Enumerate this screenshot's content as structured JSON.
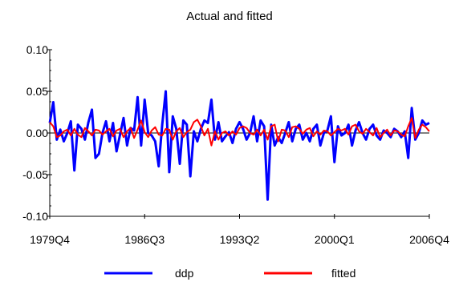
{
  "chart_data": {
    "type": "line",
    "title": "Actual and fitted",
    "xlabel": "",
    "ylabel": "",
    "ylim": [
      -0.1,
      0.1
    ],
    "yticks": [
      -0.1,
      -0.05,
      0.0,
      0.05,
      0.1
    ],
    "ytick_labels": [
      "-0.10",
      "-0.05",
      "0.00",
      "0.05",
      "0.10"
    ],
    "x_start": "1979Q4",
    "x_end": "2006Q4",
    "xtick_labels": [
      "1979Q4",
      "1986Q3",
      "1993Q2",
      "2000Q1",
      "2006Q4"
    ],
    "xtick_index": [
      0,
      27,
      54,
      81,
      108
    ],
    "legend_position": "bottom",
    "series": [
      {
        "name": "ddp",
        "color": "#0000ff",
        "values": [
          0.012,
          0.037,
          -0.008,
          0.004,
          -0.01,
          0.0,
          0.014,
          -0.045,
          0.01,
          0.005,
          -0.008,
          0.013,
          0.028,
          -0.03,
          -0.025,
          0.0,
          0.014,
          -0.01,
          0.012,
          -0.022,
          -0.002,
          0.018,
          -0.015,
          0.006,
          0.003,
          0.043,
          -0.015,
          0.04,
          0.0,
          -0.003,
          -0.01,
          -0.04,
          0.01,
          0.05,
          -0.047,
          0.02,
          0.005,
          -0.037,
          0.015,
          0.01,
          -0.052,
          0.002,
          -0.01,
          0.005,
          0.015,
          0.012,
          0.04,
          -0.008,
          0.013,
          -0.01,
          -0.004,
          0.001,
          -0.012,
          0.005,
          0.013,
          0.005,
          -0.008,
          0.0,
          0.02,
          -0.01,
          0.015,
          0.008,
          -0.08,
          0.01,
          -0.015,
          -0.005,
          -0.012,
          0.0,
          0.013,
          -0.01,
          0.005,
          0.01,
          -0.008,
          0.0,
          -0.01,
          0.005,
          0.01,
          -0.015,
          0.0,
          0.003,
          0.02,
          -0.035,
          0.008,
          -0.003,
          0.0,
          0.01,
          -0.015,
          0.003,
          0.013,
          0.0,
          -0.008,
          0.005,
          0.01,
          -0.003,
          -0.008,
          0.003,
          0.0,
          -0.005,
          0.005,
          0.002,
          -0.005,
          0.002,
          -0.03,
          0.03,
          -0.008,
          0.0,
          0.015,
          0.01,
          0.012
        ]
      },
      {
        "name": "fitted",
        "color": "#ff0000",
        "values": [
          0.013,
          0.008,
          -0.005,
          -0.003,
          0.002,
          0.004,
          -0.003,
          0.005,
          -0.002,
          -0.005,
          0.006,
          0.002,
          -0.003,
          0.004,
          0.003,
          -0.002,
          0.002,
          0.005,
          -0.004,
          0.003,
          0.005,
          -0.005,
          0.002,
          0.006,
          -0.006,
          0.004,
          0.015,
          0.001,
          -0.005,
          0.003,
          0.007,
          -0.002,
          -0.003,
          0.005,
          0.004,
          -0.008,
          0.002,
          0.006,
          -0.005,
          0.001,
          0.004,
          0.013,
          0.016,
          0.008,
          -0.003,
          0.005,
          -0.015,
          0.002,
          -0.008,
          0.0,
          0.002,
          -0.003,
          0.002,
          -0.002,
          0.006,
          0.008,
          0.006,
          0.0,
          -0.002,
          0.004,
          -0.003,
          0.004,
          -0.008,
          0.008,
          0.01,
          -0.01,
          0.004,
          0.003,
          -0.005,
          0.007,
          0.008,
          0.005,
          -0.001,
          0.004,
          0.006,
          -0.004,
          0.002,
          -0.002,
          0.003,
          0.002,
          -0.003,
          0.001,
          0.005,
          0.003,
          0.005,
          -0.002,
          0.008,
          0.01,
          0.002,
          -0.001,
          0.005,
          0.001,
          -0.003,
          0.006,
          -0.005,
          0.0,
          0.004,
          -0.003,
          0.003,
          0.002,
          -0.002,
          -0.004,
          0.008,
          0.018,
          -0.006,
          0.004,
          0.01,
          0.007,
          0.002
        ]
      }
    ]
  }
}
